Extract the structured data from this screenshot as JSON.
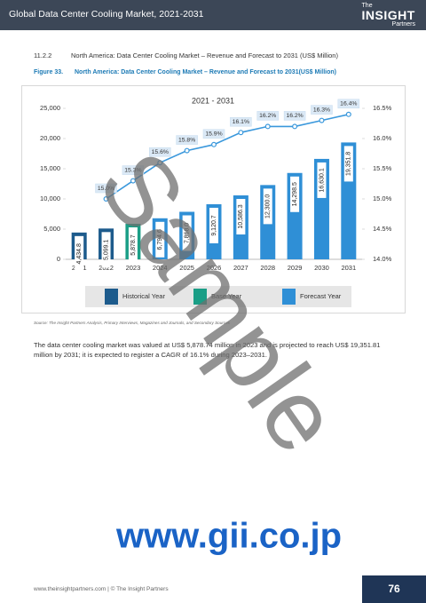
{
  "header": {
    "title": "Global Data Center Cooling Market, 2021-2031",
    "logo": [
      "The",
      "INSIGHT",
      "Partners"
    ]
  },
  "section": {
    "number": "11.2.2",
    "title": "North America: Data Center Cooling Market – Revenue and Forecast to 2031 (US$ Million)"
  },
  "figure": {
    "number": "Figure 33.",
    "caption": "North America: Data Center Cooling Market – Revenue and Forecast to 2031(US$ Million)"
  },
  "chart_data": {
    "type": "bar",
    "title": "2021 - 2031",
    "categories": [
      "2021",
      "2022",
      "2023",
      "2024",
      "2025",
      "2026",
      "2027",
      "2028",
      "2029",
      "2030",
      "2031"
    ],
    "series": [
      {
        "name": "Historical Year",
        "type": "bar",
        "color": "#1d5b8c",
        "values": [
          4434.8,
          5099.1,
          null,
          null,
          null,
          null,
          null,
          null,
          null,
          null,
          null
        ],
        "value_labels": [
          "4,434.8",
          "5,099.1",
          null,
          null,
          null,
          null,
          null,
          null,
          null,
          null,
          null
        ]
      },
      {
        "name": "Base Year",
        "type": "bar",
        "color": "#1a9e86",
        "values": [
          null,
          null,
          5878.7,
          null,
          null,
          null,
          null,
          null,
          null,
          null,
          null
        ],
        "value_labels": [
          null,
          null,
          "5,878.7",
          null,
          null,
          null,
          null,
          null,
          null,
          null,
          null
        ]
      },
      {
        "name": "Forecast Year",
        "type": "bar",
        "color": "#2f8fd6",
        "values": [
          null,
          null,
          null,
          6794.6,
          7868.0,
          9120.7,
          10586.3,
          12300.0,
          14298.5,
          16630.1,
          19351.8
        ],
        "value_labels": [
          null,
          null,
          null,
          "6,794.6",
          "7,868.0",
          "9,120.7",
          "10,586.3",
          "12,300.0",
          "14,298.5",
          "16,630.1",
          "19,351.8"
        ]
      },
      {
        "type": "line",
        "axis": "y2",
        "color": "#3a98dc",
        "values": [
          null,
          15.0,
          15.3,
          15.6,
          15.8,
          15.9,
          16.1,
          16.2,
          16.2,
          16.3,
          16.4
        ],
        "value_labels": [
          null,
          "15.0%",
          "15.3%",
          "15.6%",
          "15.8%",
          "15.9%",
          "16.1%",
          "16.2%",
          "16.2%",
          "16.3%",
          "16.4%"
        ]
      }
    ],
    "ylim": [
      0,
      25000
    ],
    "yticks": [
      0,
      {
        "value": 5000,
        "label": "5,000"
      },
      {
        "value": 10000,
        "label": "10,000"
      },
      {
        "value": 15000,
        "label": "15,000"
      },
      {
        "value": 20000,
        "label": "20,000"
      },
      {
        "value": 25000,
        "label": "25,000"
      }
    ],
    "y2lim": [
      14,
      16.5
    ],
    "y2ticks": [
      {
        "value": 14,
        "label": "14.0%"
      },
      {
        "value": 14.5,
        "label": "14.5%"
      },
      {
        "value": 15,
        "label": "15.0%"
      },
      {
        "value": 15.5,
        "label": "15.5%"
      },
      {
        "value": 16,
        "label": "16.0%"
      },
      {
        "value": 16.5,
        "label": "16.5%"
      }
    ],
    "grid": false,
    "legend": "bottom"
  },
  "source": "Source: The Insight Partners Analysis, Primary Interviews, Magazines and Journals, and Secondary Sources",
  "paragraph": "The data center cooling market was valued at US$ 5,878.74 million in 2023 and is projected to reach US$ 19,351.81 million by 2031; it is expected to register a CAGR of 16.1% during 2023–2031.",
  "watermark": "Sample",
  "watermark_url": "www.gii.co.jp",
  "footer": {
    "text": "www.theinsightpartners.com  |  © The Insight Partners",
    "page": "76"
  }
}
